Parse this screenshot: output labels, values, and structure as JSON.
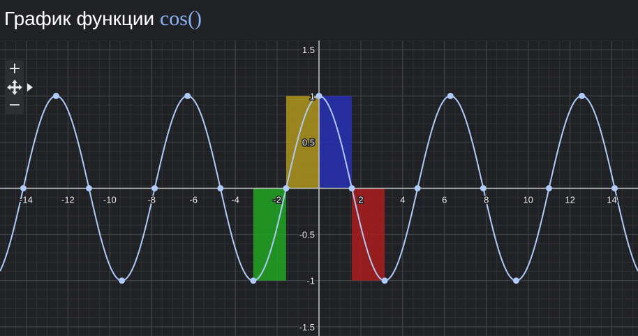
{
  "header": {
    "title_text": "График функции",
    "function_label": "cos()"
  },
  "controls": {
    "zoom_in_label": "+",
    "zoom_out_label": "−",
    "pan_icon": "move-arrows-icon",
    "expand_icon": "triangle-right-icon"
  },
  "colors": {
    "background": "#202124",
    "curve": "#aecbfa",
    "grid_minor": "#2f3136",
    "grid_major": "#45474c",
    "axis": "#c4c7c5",
    "rect_green": "#22a822",
    "rect_yellow": "#b49a1c",
    "rect_blue": "#2830b8",
    "rect_red": "#b01c1c"
  },
  "chart_data": {
    "type": "line",
    "function": "cos(x)",
    "xlim": [
      -15.25,
      15.25
    ],
    "ylim": [
      -1.6,
      1.6
    ],
    "x_ticks": [
      -14,
      -12,
      -10,
      -8,
      -6,
      -4,
      -2,
      2,
      4,
      6,
      8,
      10,
      12,
      14
    ],
    "y_ticks": [
      -1.5,
      -1,
      -0.5,
      0.5,
      1,
      1.5
    ],
    "grid": true,
    "marked_points": {
      "maxima_x": [
        -12.566,
        -6.283,
        0,
        6.283,
        12.566
      ],
      "minima_x": [
        -9.425,
        -3.142,
        3.142,
        9.425
      ],
      "zeros_x": [
        -14.137,
        -10.996,
        -7.854,
        -4.712,
        -1.571,
        1.571,
        4.712,
        7.854,
        10.996,
        14.137
      ]
    },
    "rectangles": [
      {
        "x0": -3.142,
        "x1": -1.571,
        "y0": -1,
        "y1": 0,
        "color": "#22a822"
      },
      {
        "x0": -1.571,
        "x1": 0,
        "y0": 0,
        "y1": 1,
        "color": "#b49a1c"
      },
      {
        "x0": 0,
        "x1": 1.571,
        "y0": 0,
        "y1": 1,
        "color": "#2830b8"
      },
      {
        "x0": 1.571,
        "x1": 3.142,
        "y0": -1,
        "y1": 0,
        "color": "#b01c1c"
      }
    ]
  }
}
